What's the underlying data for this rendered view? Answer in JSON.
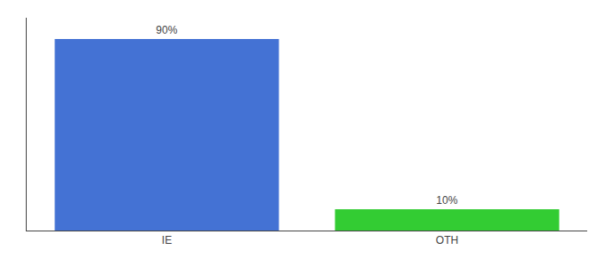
{
  "chart_data": {
    "type": "bar",
    "categories": [
      "IE",
      "OTH"
    ],
    "values": [
      90,
      10
    ],
    "value_labels": [
      "90%",
      "10%"
    ],
    "colors": [
      "#4472d4",
      "#33cc33"
    ],
    "ylim": [
      0,
      100
    ],
    "data_labels": true,
    "tick_labels": "x",
    "grid": false
  }
}
